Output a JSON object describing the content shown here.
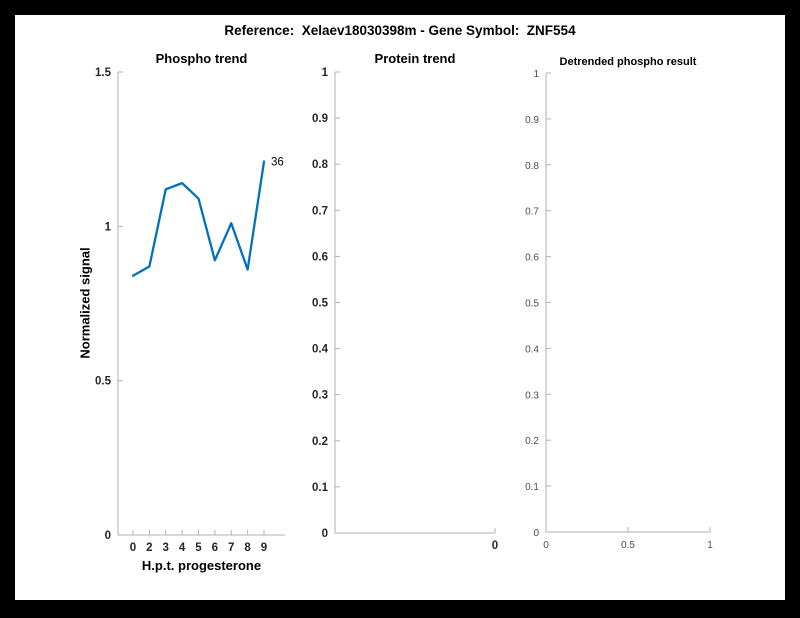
{
  "figure": {
    "title": "Reference:  Xelaev18030398m - Gene Symbol:  ZNF554"
  },
  "colors": {
    "line": "#0072bd",
    "axis": "#b2b2b2",
    "tick_label_bold": "#262626",
    "tick_label_normal": "#4d4d4d",
    "figure_background": "#ffffff",
    "frame_background": "#000000"
  },
  "chart_data": [
    {
      "type": "line",
      "title": "Phospho trend",
      "xlabel": "H.p.t. progesterone",
      "ylabel": "Normalized signal",
      "ylim": [
        0,
        1.5
      ],
      "y_ticks": [
        0,
        0.5,
        1,
        1.5
      ],
      "y_tick_labels": [
        "0",
        "0.5",
        "1",
        "1.5"
      ],
      "x_ticks": [
        {
          "f": 0.0898,
          "label": "0"
        },
        {
          "f": 0.1879,
          "label": "2"
        },
        {
          "f": 0.2859,
          "label": "3"
        },
        {
          "f": 0.384,
          "label": "4"
        },
        {
          "f": 0.482,
          "label": "5"
        },
        {
          "f": 0.5801,
          "label": "6"
        },
        {
          "f": 0.6781,
          "label": "7"
        },
        {
          "f": 0.7762,
          "label": "8"
        },
        {
          "f": 0.8743,
          "label": "9"
        }
      ],
      "x_values": [
        0,
        2,
        3,
        4,
        5,
        6,
        7,
        8,
        9
      ],
      "values": [
        0.84,
        0.87,
        1.12,
        1.14,
        1.09,
        0.89,
        1.01,
        0.86,
        1.21
      ],
      "end_label": "36",
      "grid": false,
      "legend": "none"
    },
    {
      "type": "line",
      "title": "Protein trend",
      "xlabel": "",
      "ylabel": "",
      "ylim": [
        0,
        1
      ],
      "y_ticks": [
        0,
        0.1,
        0.2,
        0.3,
        0.4,
        0.5,
        0.6,
        0.7,
        0.8,
        0.9,
        1
      ],
      "y_tick_labels": [
        "0",
        "0.1",
        "0.2",
        "0.3",
        "0.4",
        "0.5",
        "0.6",
        "0.7",
        "0.8",
        "0.9",
        "1"
      ],
      "x_ticks": [
        {
          "f": 1,
          "label": "0"
        }
      ],
      "x_values": [],
      "values": [],
      "grid": false,
      "legend": "none"
    },
    {
      "type": "line",
      "title": "Detrended phospho result",
      "xlabel": "",
      "ylabel": "",
      "ylim": [
        0,
        1
      ],
      "xlim": [
        0,
        1
      ],
      "y_ticks": [
        0,
        0.1,
        0.2,
        0.3,
        0.4,
        0.5,
        0.6,
        0.7,
        0.8,
        0.9,
        1
      ],
      "y_tick_labels": [
        "0",
        "0.1",
        "0.2",
        "0.3",
        "0.4",
        "0.5",
        "0.6",
        "0.7",
        "0.8",
        "0.9",
        "1"
      ],
      "x_ticks": [
        {
          "f": 0,
          "label": "0"
        },
        {
          "f": 0.5,
          "label": "0.5"
        },
        {
          "f": 1,
          "label": "1"
        }
      ],
      "x_values": [],
      "values": [],
      "grid": false,
      "legend": "none"
    }
  ]
}
